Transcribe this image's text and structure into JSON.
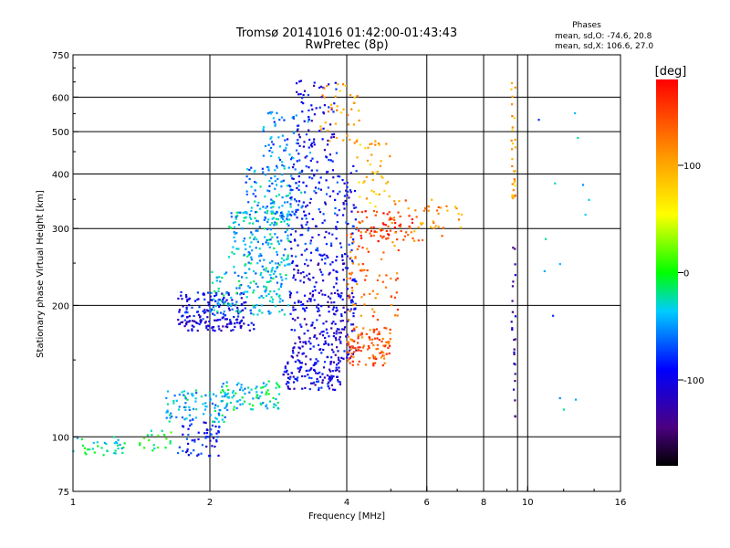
{
  "chart_data": {
    "type": "scatter",
    "title": "Tromsø 20141016 01:42:00-01:43:43",
    "subtitle": "RwPretec (8p)",
    "xlabel": "Frequency [MHz]",
    "ylabel": "Stationary phase Virtual Height [km]",
    "x_scale": "log",
    "y_scale": "log",
    "xlim": [
      1,
      16
    ],
    "ylim": [
      75,
      750
    ],
    "x_ticks": [
      1,
      2,
      4,
      6,
      8,
      10,
      16
    ],
    "y_ticks": [
      75,
      100,
      200,
      300,
      400,
      500,
      600,
      750
    ],
    "x_gridlines": [
      2,
      4,
      6,
      8,
      9.5,
      10
    ],
    "y_gridlines": [
      100,
      200,
      300,
      400,
      500,
      600
    ],
    "grid": true,
    "stats": {
      "header": "Phases",
      "o_mode": "mean, sd,O: -74.6, 20.8",
      "x_mode": "mean, sd,X: 106.6, 27.0"
    },
    "colorbar": {
      "label": "[deg]",
      "range": [
        -180,
        180
      ],
      "ticks": [
        100,
        0,
        -100
      ],
      "tick_labels": [
        "100",
        "0",
        "-100"
      ]
    },
    "clusters": [
      {
        "f": [
          1.0,
          1.3
        ],
        "h": [
          90,
          100
        ],
        "phase": -20,
        "n": 35
      },
      {
        "f": [
          1.4,
          1.7
        ],
        "h": [
          93,
          105
        ],
        "phase": -10,
        "n": 20
      },
      {
        "f": [
          1.7,
          2.1
        ],
        "h": [
          90,
          110
        ],
        "phase": -90,
        "n": 60
      },
      {
        "f": [
          1.6,
          2.2
        ],
        "h": [
          108,
          128
        ],
        "phase": -40,
        "n": 90
      },
      {
        "f": [
          2.1,
          2.9
        ],
        "h": [
          115,
          135
        ],
        "phase": -30,
        "n": 90
      },
      {
        "f": [
          2.9,
          3.9
        ],
        "h": [
          128,
          150
        ],
        "phase": -100,
        "n": 120
      },
      {
        "f": [
          1.7,
          2.5
        ],
        "h": [
          175,
          185
        ],
        "phase": -110,
        "n": 70
      },
      {
        "f": [
          1.7,
          2.4
        ],
        "h": [
          185,
          215
        ],
        "phase": -95,
        "n": 120
      },
      {
        "f": [
          2.0,
          3.0
        ],
        "h": [
          190,
          240
        ],
        "phase": -40,
        "n": 140
      },
      {
        "f": [
          2.2,
          3.0
        ],
        "h": [
          240,
          330
        ],
        "phase": -40,
        "n": 180
      },
      {
        "f": [
          2.4,
          3.2
        ],
        "h": [
          320,
          420
        ],
        "phase": -50,
        "n": 110
      },
      {
        "f": [
          2.6,
          3.4
        ],
        "h": [
          420,
          560
        ],
        "phase": -60,
        "n": 60
      },
      {
        "f": [
          3.0,
          4.2
        ],
        "h": [
          150,
          250
        ],
        "phase": -105,
        "n": 260
      },
      {
        "f": [
          3.0,
          4.2
        ],
        "h": [
          250,
          420
        ],
        "phase": -90,
        "n": 180
      },
      {
        "f": [
          3.1,
          3.8
        ],
        "h": [
          420,
          660
        ],
        "phase": -100,
        "n": 80
      },
      {
        "f": [
          3.5,
          4.3
        ],
        "h": [
          470,
          650
        ],
        "phase": 100,
        "n": 40
      },
      {
        "f": [
          4.0,
          5.0
        ],
        "h": [
          145,
          180
        ],
        "phase": 140,
        "n": 110
      },
      {
        "f": [
          4.0,
          5.2
        ],
        "h": [
          185,
          300
        ],
        "phase": 130,
        "n": 80
      },
      {
        "f": [
          4.2,
          5.6
        ],
        "h": [
          280,
          330
        ],
        "phase": 160,
        "n": 60
      },
      {
        "f": [
          4.2,
          5.0
        ],
        "h": [
          330,
          480
        ],
        "phase": 90,
        "n": 40
      },
      {
        "f": [
          5.0,
          6.5
        ],
        "h": [
          280,
          350
        ],
        "phase": 120,
        "n": 30
      },
      {
        "f": [
          5.8,
          7.2
        ],
        "h": [
          300,
          340
        ],
        "phase": 110,
        "n": 20
      },
      {
        "f": [
          9.2,
          9.4
        ],
        "h": [
          350,
          650
        ],
        "phase": 100,
        "n": 30
      },
      {
        "f": [
          9.2,
          9.4
        ],
        "h": [
          110,
          280
        ],
        "phase": -120,
        "n": 25
      },
      {
        "f": [
          10.5,
          14.0
        ],
        "h": [
          110,
          620
        ],
        "phase": -50,
        "n": 14
      }
    ]
  }
}
